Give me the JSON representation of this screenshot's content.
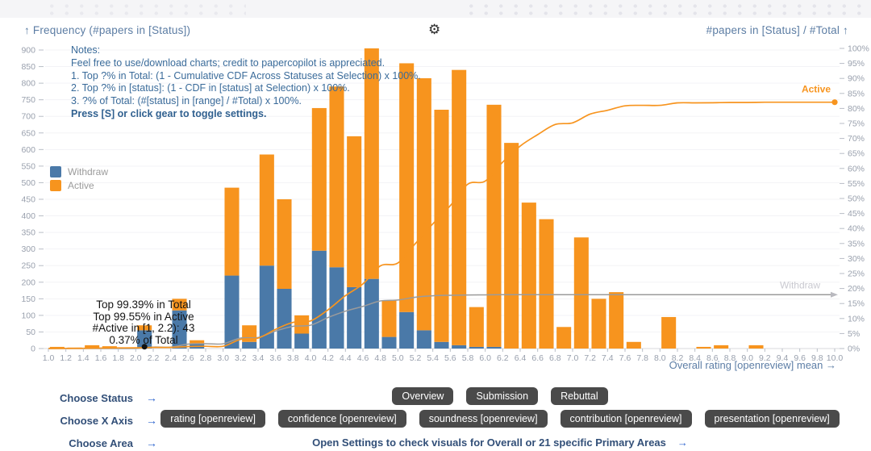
{
  "header": {
    "left_axis_title": "↑ Frequency (#papers in [Status])",
    "right_axis_title": "#papers in [Status] / #Total ↑",
    "gear_glyph": "⚙"
  },
  "notes": {
    "lines": [
      "Notes:",
      "Feel free to use/download charts; credit to papercopilot is appreciated.",
      "1. Top ?% in Total: (1 - Cumulative CDF Across Statuses at Selection) x 100%.",
      "2. Top ?% in [status]: (1 - CDF in [status] at Selection) x 100%.",
      "3. ?% of Total: (#[status] in [range] / #Total) x 100%.",
      "Press [S] or click gear to toggle settings."
    ]
  },
  "tooltip": {
    "lines": [
      "Top 99.39% in Total",
      "Top 99.55% in Active",
      "#Active in [1, 2.2): 43",
      "0.37% of Total"
    ]
  },
  "chart_data": {
    "type": "bar",
    "title": "",
    "xlabel": "Overall rating [openreview] mean →",
    "ylabel_left": "Frequency (#papers in [Status])",
    "ylabel_right": "#papers in [Status] / #Total",
    "xlim": [
      1.0,
      10.0
    ],
    "bin_width": 0.2,
    "x_tick_step": 0.2,
    "ylim_left": [
      0,
      900
    ],
    "y_tick_step_left": 50,
    "ylim_right_percent": [
      0,
      100
    ],
    "y_tick_step_right": 5,
    "grid": true,
    "legend_position": "left-middle",
    "categories": [
      1.0,
      1.2,
      1.4,
      1.6,
      1.8,
      2.0,
      2.2,
      2.4,
      2.6,
      2.8,
      3.0,
      3.2,
      3.4,
      3.6,
      3.8,
      4.0,
      4.2,
      4.4,
      4.6,
      4.8,
      5.0,
      5.2,
      5.4,
      5.6,
      5.8,
      6.0,
      6.2,
      6.4,
      6.6,
      6.8,
      7.0,
      7.2,
      7.4,
      7.6,
      7.8,
      8.0,
      8.2,
      8.4,
      8.6,
      8.8,
      9.0,
      9.2,
      9.4,
      9.6,
      9.8
    ],
    "series": [
      {
        "name": "Withdraw",
        "color": "#4a79a8",
        "values": [
          0,
          0,
          0,
          0,
          0,
          55,
          0,
          115,
          15,
          0,
          220,
          20,
          250,
          180,
          45,
          295,
          245,
          185,
          210,
          35,
          110,
          55,
          20,
          10,
          5,
          5,
          0,
          0,
          0,
          0,
          0,
          0,
          0,
          0,
          0,
          0,
          0,
          0,
          0,
          0,
          0,
          0,
          0,
          0,
          0
        ]
      },
      {
        "name": "Active",
        "color": "#f7941e",
        "values": [
          5,
          3,
          10,
          7,
          3,
          15,
          0,
          35,
          10,
          0,
          265,
          50,
          335,
          270,
          55,
          430,
          545,
          455,
          695,
          110,
          750,
          760,
          700,
          830,
          120,
          730,
          620,
          440,
          390,
          65,
          335,
          150,
          170,
          20,
          0,
          95,
          0,
          5,
          10,
          0,
          10,
          0,
          0,
          0,
          0
        ]
      }
    ],
    "cdf_lines": [
      {
        "name": "Withdraw",
        "color": "#9b9b9b",
        "end_marker": "arrow",
        "approx_end_percent": 17.9,
        "label_color": "#c9c9d0"
      },
      {
        "name": "Active",
        "color": "#f7941e",
        "end_marker": "dot",
        "approx_end_percent": 82.1,
        "label_color": "#f7941e"
      }
    ],
    "selection_marker": {
      "x": 2.1,
      "percent": 0.6,
      "color": "#111111"
    }
  },
  "footer": {
    "status_tabs": [
      "Overview",
      "Submission",
      "Rebuttal"
    ],
    "metric_tabs": [
      "rating [openreview]",
      "confidence [openreview]",
      "soundness [openreview]",
      "contribution [openreview]",
      "presentation [openreview]"
    ],
    "choose_labels": [
      "Choose Status",
      "Choose X Axis",
      "Choose Area"
    ],
    "arrow": "→",
    "settings_note": "Open Settings to check visuals for Overall or 21 specific Primary Areas"
  }
}
